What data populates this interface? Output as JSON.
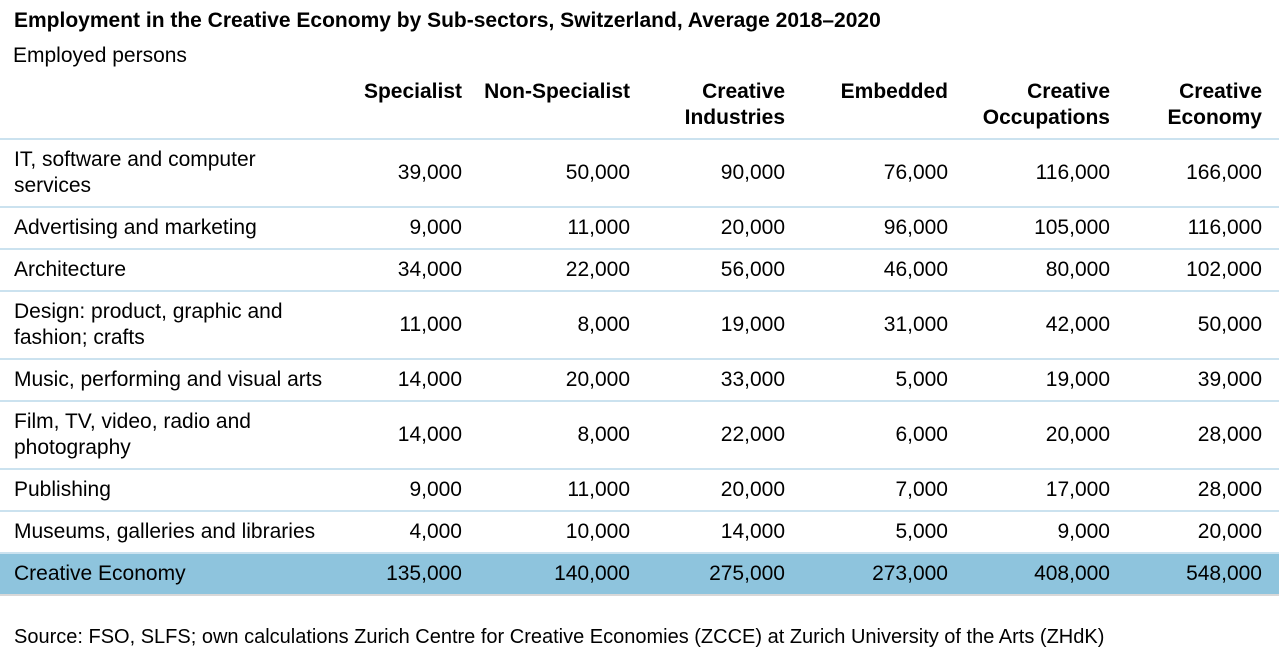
{
  "title": "Employment in the Creative Economy by Sub-sectors, Switzerland, Average 2018–2020",
  "subtitle": "Employed persons",
  "chart_data": {
    "type": "table",
    "title": "Employment in the Creative Economy by Sub-sectors, Switzerland, Average 2018–2020",
    "unit_label": "Employed persons",
    "columns": [
      "Specialist",
      "Non-Specialist",
      "Creative Industries",
      "Embedded",
      "Creative Occupations",
      "Creative Economy"
    ],
    "rows": [
      {
        "label": "IT, software and computer services",
        "values": [
          "39,000",
          "50,000",
          "90,000",
          "76,000",
          "116,000",
          "166,000"
        ]
      },
      {
        "label": "Advertising and marketing",
        "values": [
          "9,000",
          "11,000",
          "20,000",
          "96,000",
          "105,000",
          "116,000"
        ]
      },
      {
        "label": "Architecture",
        "values": [
          "34,000",
          "22,000",
          "56,000",
          "46,000",
          "80,000",
          "102,000"
        ]
      },
      {
        "label": "Design: product, graphic and fashion; crafts",
        "values": [
          "11,000",
          "8,000",
          "19,000",
          "31,000",
          "42,000",
          "50,000"
        ]
      },
      {
        "label": "Music, performing and visual arts",
        "values": [
          "14,000",
          "20,000",
          "33,000",
          "5,000",
          "19,000",
          "39,000"
        ]
      },
      {
        "label": "Film, TV, video, radio and photography",
        "values": [
          "14,000",
          "8,000",
          "22,000",
          "6,000",
          "20,000",
          "28,000"
        ]
      },
      {
        "label": "Publishing",
        "values": [
          "9,000",
          "11,000",
          "20,000",
          "7,000",
          "17,000",
          "28,000"
        ]
      },
      {
        "label": "Museums, galleries and libraries",
        "values": [
          "4,000",
          "10,000",
          "14,000",
          "5,000",
          "9,000",
          "20,000"
        ]
      }
    ],
    "total_row": {
      "label": "Creative Economy",
      "values": [
        "135,000",
        "140,000",
        "275,000",
        "273,000",
        "408,000",
        "548,000"
      ]
    },
    "source": "Source: FSO, SLFS; own calculations Zurich Centre for Creative Economies (ZCCE) at Zurich University of the Arts (ZHdK)"
  },
  "colors": {
    "highlight_row_bg": "#8ec4dd",
    "row_divider": "#cbe2ef",
    "table_bottom_rule": "#d8d8d8"
  }
}
